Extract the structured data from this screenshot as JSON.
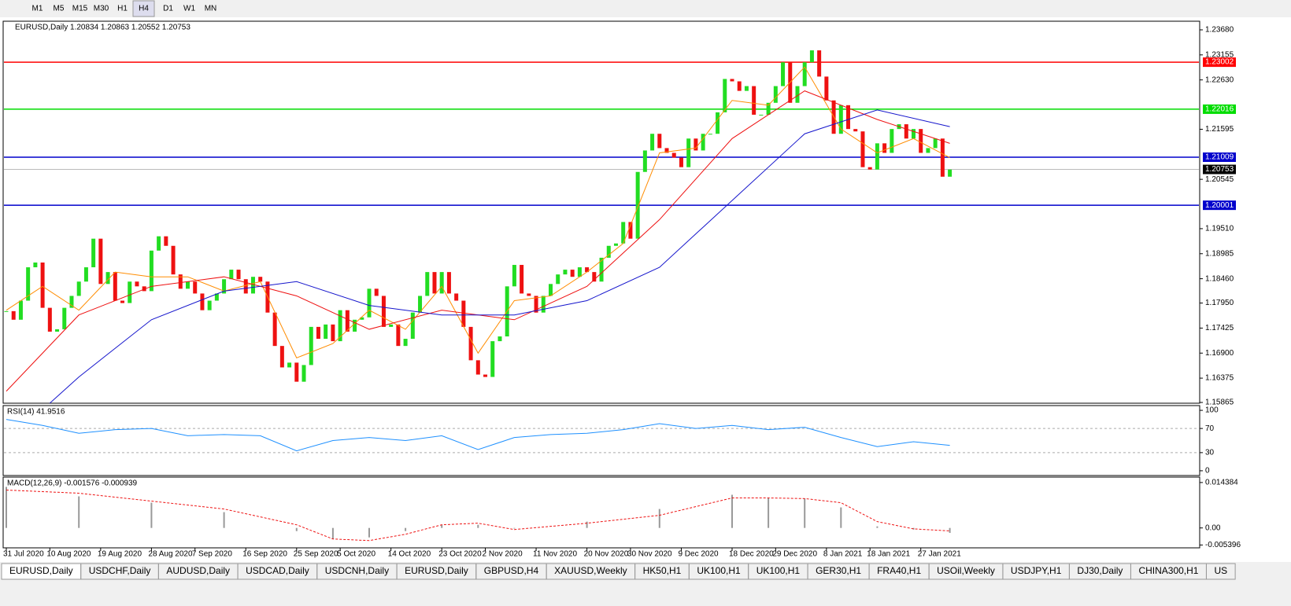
{
  "toolbar": {
    "timeframes": [
      "M1",
      "M5",
      "M15",
      "M30",
      "H1",
      "H4",
      "D1",
      "W1",
      "MN"
    ],
    "active": 5
  },
  "chart_data": [
    {
      "type": "candlestick",
      "title": "EURUSD,Daily  1.20834 1.20863 1.20552 1.20753",
      "categories": [
        "31 Jul 2020",
        null,
        null,
        null,
        null,
        null,
        "10 Aug 2020",
        null,
        null,
        null,
        null,
        null,
        null,
        "19 Aug 2020",
        null,
        null,
        null,
        null,
        null,
        null,
        "28 Aug 2020",
        null,
        null,
        null,
        null,
        null,
        "7 Sep 2020",
        null,
        null,
        null,
        null,
        null,
        null,
        "16 Sep 2020",
        null,
        null,
        null,
        null,
        null,
        null,
        "25 Sep 2020",
        null,
        null,
        null,
        null,
        null,
        "5 Oct 2020",
        null,
        null,
        null,
        null,
        null,
        null,
        "14 Oct 2020",
        null,
        null,
        null,
        null,
        null,
        null,
        "23 Oct 2020",
        null,
        null,
        null,
        null,
        null,
        "2 Nov 2020",
        null,
        null,
        null,
        null,
        null,
        null,
        "11 Nov 2020",
        null,
        null,
        null,
        null,
        null,
        null,
        "20 Nov 2020",
        null,
        null,
        null,
        null,
        null,
        "30 Nov 2020",
        null,
        null,
        null,
        null,
        null,
        null,
        "9 Dec 2020",
        null,
        null,
        null,
        null,
        null,
        null,
        "18 Dec 2020",
        null,
        null,
        null,
        null,
        null,
        "29 Dec 2020",
        null,
        null,
        null,
        null,
        null,
        null,
        "8 Jan 2021",
        null,
        null,
        null,
        null,
        null,
        "18 Jan 2021",
        null,
        null,
        null,
        null,
        null,
        null,
        "27 Jan 2021",
        null,
        null,
        null,
        null
      ],
      "close": [
        1.1778,
        1.176,
        1.18,
        1.187,
        1.188,
        1.1785,
        1.1735,
        1.174,
        1.1785,
        1.181,
        1.184,
        1.187,
        1.193,
        1.1835,
        1.186,
        1.18,
        1.1795,
        1.184,
        1.183,
        1.182,
        1.1905,
        1.1935,
        1.1915,
        1.1855,
        1.1825,
        1.184,
        1.1815,
        1.178,
        1.18,
        1.1815,
        1.1845,
        1.1865,
        1.1845,
        1.1815,
        1.185,
        1.184,
        1.1775,
        1.1705,
        1.166,
        1.167,
        1.163,
        1.1665,
        1.1745,
        1.172,
        1.175,
        1.1715,
        1.178,
        1.1735,
        1.176,
        1.1765,
        1.1825,
        1.181,
        1.1745,
        1.175,
        1.1705,
        1.172,
        1.1775,
        1.181,
        1.186,
        1.1815,
        1.186,
        1.1815,
        1.18,
        1.1745,
        1.1675,
        1.1645,
        1.164,
        1.1715,
        1.1725,
        1.183,
        1.1875,
        1.1815,
        1.181,
        1.1775,
        1.181,
        1.1835,
        1.1855,
        1.1865,
        1.185,
        1.187,
        1.186,
        1.184,
        1.189,
        1.1915,
        1.192,
        1.1965,
        1.193,
        1.207,
        1.2115,
        1.215,
        1.212,
        1.211,
        1.21,
        1.208,
        1.214,
        1.2115,
        1.215,
        1.215,
        1.2195,
        1.2265,
        1.226,
        1.224,
        1.225,
        1.219,
        1.219,
        1.2215,
        1.225,
        1.23,
        1.2215,
        1.225,
        1.23,
        1.2325,
        1.227,
        1.222,
        1.215,
        1.221,
        1.216,
        1.2155,
        1.208,
        1.2075,
        1.213,
        1.211,
        1.216,
        1.217,
        1.214,
        1.216,
        1.211,
        1.212,
        1.214,
        1.206,
        1.2075
      ],
      "up_color": "#22dd22",
      "down_color": "#ee1111",
      "lines": [
        {
          "color": "#ff8c00",
          "x": [
            0,
            5,
            10,
            15,
            20,
            25,
            30,
            35,
            40,
            45,
            50,
            55,
            60,
            65,
            70,
            75,
            80,
            85,
            90,
            95,
            100,
            105,
            110,
            115,
            120,
            125,
            130
          ],
          "values": [
            1.178,
            1.183,
            1.178,
            1.186,
            1.185,
            1.185,
            1.182,
            1.184,
            1.168,
            1.171,
            1.178,
            1.174,
            1.183,
            1.169,
            1.18,
            1.181,
            1.186,
            1.192,
            1.211,
            1.212,
            1.222,
            1.221,
            1.229,
            1.216,
            1.211,
            1.214,
            1.21
          ]
        },
        {
          "color": "#ee1111",
          "x": [
            0,
            10,
            20,
            30,
            40,
            50,
            60,
            70,
            80,
            90,
            100,
            110,
            120,
            130
          ],
          "values": [
            1.161,
            1.177,
            1.183,
            1.185,
            1.181,
            1.174,
            1.178,
            1.176,
            1.183,
            1.197,
            1.214,
            1.224,
            1.218,
            1.213
          ]
        },
        {
          "color": "#1515cc",
          "x": [
            6,
            10,
            20,
            30,
            40,
            50,
            60,
            70,
            80,
            90,
            100,
            110,
            120,
            130
          ],
          "values": [
            1.1585,
            1.164,
            1.176,
            1.182,
            1.184,
            1.179,
            1.177,
            1.177,
            1.18,
            1.187,
            1.201,
            1.215,
            1.22,
            1.2165
          ]
        }
      ],
      "levels": [
        {
          "value": 1.23002,
          "label": "1.23002",
          "color": "#ff0000"
        },
        {
          "value": 1.22016,
          "label": "1.22016",
          "color": "#00dd00"
        },
        {
          "value": 1.21009,
          "label": "1.21009",
          "color": "#0000cc"
        },
        {
          "value": 1.20001,
          "label": "1.20001",
          "color": "#0000cc"
        }
      ],
      "current": {
        "value": 1.20753,
        "label": "1.20753"
      },
      "ylim": [
        1.15849,
        1.23861
      ],
      "yticks": [
        {
          "value": 1.2368,
          "label": "1.23680"
        },
        1.23155,
        {
          "value": 1.2263,
          "label": "1.22630"
        },
        1.21595,
        1.20545,
        {
          "value": 1.1951,
          "label": "1.19510"
        },
        1.18985,
        {
          "value": 1.1846,
          "label": "1.18460"
        },
        {
          "value": 1.1795,
          "label": "1.17950"
        },
        1.17425,
        {
          "value": 1.169,
          "label": "1.16900"
        },
        1.16375,
        1.15865
      ]
    },
    {
      "type": "line",
      "title": "RSI(14) 41.9516",
      "color": "#1e90ff",
      "x": [
        0,
        5,
        10,
        15,
        20,
        25,
        30,
        35,
        40,
        45,
        50,
        55,
        60,
        65,
        70,
        75,
        80,
        85,
        90,
        95,
        100,
        105,
        110,
        115,
        120,
        125,
        130
      ],
      "values": [
        85,
        75,
        62,
        68,
        70,
        58,
        60,
        58,
        33,
        50,
        55,
        50,
        58,
        35,
        55,
        60,
        62,
        68,
        78,
        70,
        75,
        68,
        72,
        55,
        40,
        48,
        42
      ],
      "ylim": [
        -7.9,
        107.9
      ],
      "yticks": [
        100,
        70,
        30,
        0
      ]
    },
    {
      "type": "macd",
      "title": "MACD(12,26,9) -0.001576 -0.000939",
      "color": "#999999",
      "signal_color": "#ee1111",
      "x": [
        0,
        10,
        20,
        30,
        40,
        45,
        50,
        55,
        60,
        65,
        70,
        80,
        90,
        100,
        105,
        110,
        115,
        120,
        125,
        130
      ],
      "values": [
        0.013,
        0.01,
        0.008,
        0.005,
        -0.001,
        -0.0035,
        -0.003,
        -0.001,
        0.001,
        0.001,
        -0.0002,
        0.002,
        0.006,
        0.0105,
        0.0095,
        0.0093,
        0.0065,
        0.0005,
        -0.0005,
        -0.001576
      ],
      "signal": [
        0.012,
        0.011,
        0.0085,
        0.006,
        0.001,
        -0.0035,
        -0.004,
        -0.002,
        0.001,
        0.0015,
        -0.0005,
        0.0015,
        0.004,
        0.0095,
        0.0095,
        0.0093,
        0.008,
        0.002,
        -0.0003,
        -0.000939
      ],
      "ylim": [
        -0.0063,
        0.0161
      ],
      "yticks": [
        0.014384,
        {
          "value": 0,
          "label": "0.00"
        },
        -0.005396
      ]
    }
  ],
  "tabs": [
    "EURUSD,Daily",
    "USDCHF,Daily",
    "AUDUSD,Daily",
    "USDCAD,Daily",
    "USDCNH,Daily",
    "EURUSD,Daily",
    "GBPUSD,H4",
    "XAUUSD,Weekly",
    "HK50,H1",
    "UK100,H1",
    "UK100,H1",
    "GER30,H1",
    "FRA40,H1",
    "USOil,Weekly",
    "USDJPY,H1",
    "DJ30,Daily",
    "CHINA300,H1",
    "US"
  ]
}
